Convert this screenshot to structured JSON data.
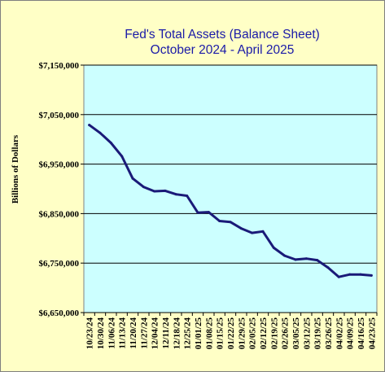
{
  "chart_data": {
    "type": "line",
    "title": "Fed's Total Assets (Balance Sheet)",
    "subtitle": "October 2024 - April 2025",
    "xlabel": "",
    "ylabel": "Billions of Dollars",
    "ylim": [
      6650000,
      7150000
    ],
    "yticks": [
      6650000,
      6750000,
      6850000,
      6950000,
      7050000,
      7150000
    ],
    "ytick_labels": [
      "$6,650,000",
      "$6,750,000",
      "$6,850,000",
      "$6,950,000",
      "$7,050,000",
      "$7,150,000"
    ],
    "x": [
      "10/23/24",
      "10/30/24",
      "11/06/24",
      "11/13/24",
      "11/20/24",
      "11/27/24",
      "12/04/24",
      "12/11/24",
      "12/18/24",
      "12/25/24",
      "01/01/25",
      "01/08/25",
      "01/15/25",
      "01/22/25",
      "01/29/25",
      "02/05/25",
      "02/12/25",
      "02/19/25",
      "02/26/25",
      "03/05/25",
      "03/12/25",
      "03/19/25",
      "03/26/25",
      "04/02/25",
      "04/09/25",
      "04/16/25",
      "04/23/25"
    ],
    "series": [
      {
        "values": [
          7029000,
          7013000,
          6993000,
          6966000,
          6921000,
          6904000,
          6895000,
          6896000,
          6889000,
          6886000,
          6852000,
          6853000,
          6835000,
          6833000,
          6820000,
          6811000,
          6814000,
          6781000,
          6765000,
          6757000,
          6759000,
          6756000,
          6741000,
          6722000,
          6727000,
          6727000,
          6725000
        ]
      }
    ],
    "grid": true,
    "legend": "none",
    "colors": {
      "line": "#1a1a78",
      "plot_background": "#ccffff",
      "chart_background": "#ffffc6",
      "title": "#1a1aa8",
      "gridline": "#000000"
    }
  }
}
